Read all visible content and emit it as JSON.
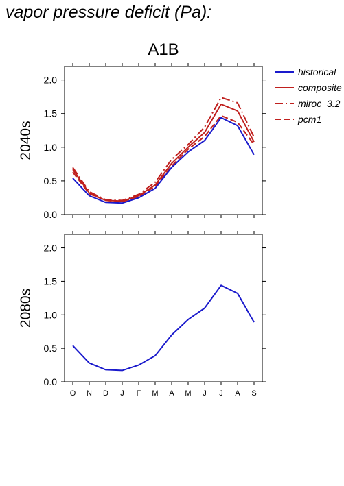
{
  "page_title": "vapor pressure deficit (Pa):",
  "colors": {
    "historical": "#1a1acc",
    "composite": "#c0201e",
    "miroc_3.2": "#c0201e",
    "pcm1": "#c0201e",
    "axis": "#000000"
  },
  "legend": {
    "placement": "right",
    "items": [
      {
        "label": "historical",
        "color": "#1a1acc",
        "style": "solid"
      },
      {
        "label": "composite",
        "color": "#c0201e",
        "style": "solid"
      },
      {
        "label": "miroc_3.2",
        "color": "#c0201e",
        "style": "dashdot"
      },
      {
        "label": "pcm1",
        "color": "#c0201e",
        "style": "dashed"
      }
    ]
  },
  "chart_data": [
    {
      "type": "line",
      "title": "A1B",
      "ylabel": "2040s",
      "xlabel": "",
      "categories": [
        "O",
        "N",
        "D",
        "J",
        "F",
        "M",
        "A",
        "M",
        "J",
        "J",
        "A",
        "S"
      ],
      "yticks": [
        "0.0",
        "0.5",
        "1.0",
        "1.5",
        "2.0"
      ],
      "ylim": [
        0,
        2.2
      ],
      "grid": false,
      "show_x_tick_labels": false,
      "series": [
        {
          "name": "historical",
          "style": "solid",
          "color": "#1a1acc",
          "values": [
            0.54,
            0.28,
            0.18,
            0.17,
            0.25,
            0.39,
            0.7,
            0.93,
            1.1,
            1.44,
            1.32,
            0.89
          ]
        },
        {
          "name": "composite",
          "style": "solid",
          "color": "#c0201e",
          "values": [
            0.67,
            0.32,
            0.21,
            0.2,
            0.28,
            0.44,
            0.76,
            1.0,
            1.22,
            1.64,
            1.54,
            1.08
          ]
        },
        {
          "name": "miroc_3.2",
          "style": "dashdot",
          "color": "#c0201e",
          "values": [
            0.7,
            0.34,
            0.22,
            0.21,
            0.3,
            0.48,
            0.82,
            1.04,
            1.3,
            1.74,
            1.66,
            1.15
          ]
        },
        {
          "name": "pcm1",
          "style": "dashed",
          "color": "#c0201e",
          "values": [
            0.63,
            0.31,
            0.21,
            0.19,
            0.27,
            0.42,
            0.72,
            0.97,
            1.16,
            1.47,
            1.37,
            1.04
          ]
        }
      ]
    },
    {
      "type": "line",
      "title": "",
      "ylabel": "2080s",
      "xlabel": "",
      "categories": [
        "O",
        "N",
        "D",
        "J",
        "F",
        "M",
        "A",
        "M",
        "J",
        "J",
        "A",
        "S"
      ],
      "yticks": [
        "0.0",
        "0.5",
        "1.0",
        "1.5",
        "2.0"
      ],
      "ylim": [
        0,
        2.2
      ],
      "grid": false,
      "show_x_tick_labels": true,
      "series": [
        {
          "name": "historical",
          "style": "solid",
          "color": "#1a1acc",
          "values": [
            0.54,
            0.28,
            0.18,
            0.17,
            0.25,
            0.39,
            0.7,
            0.93,
            1.1,
            1.44,
            1.32,
            0.89
          ]
        }
      ]
    }
  ]
}
